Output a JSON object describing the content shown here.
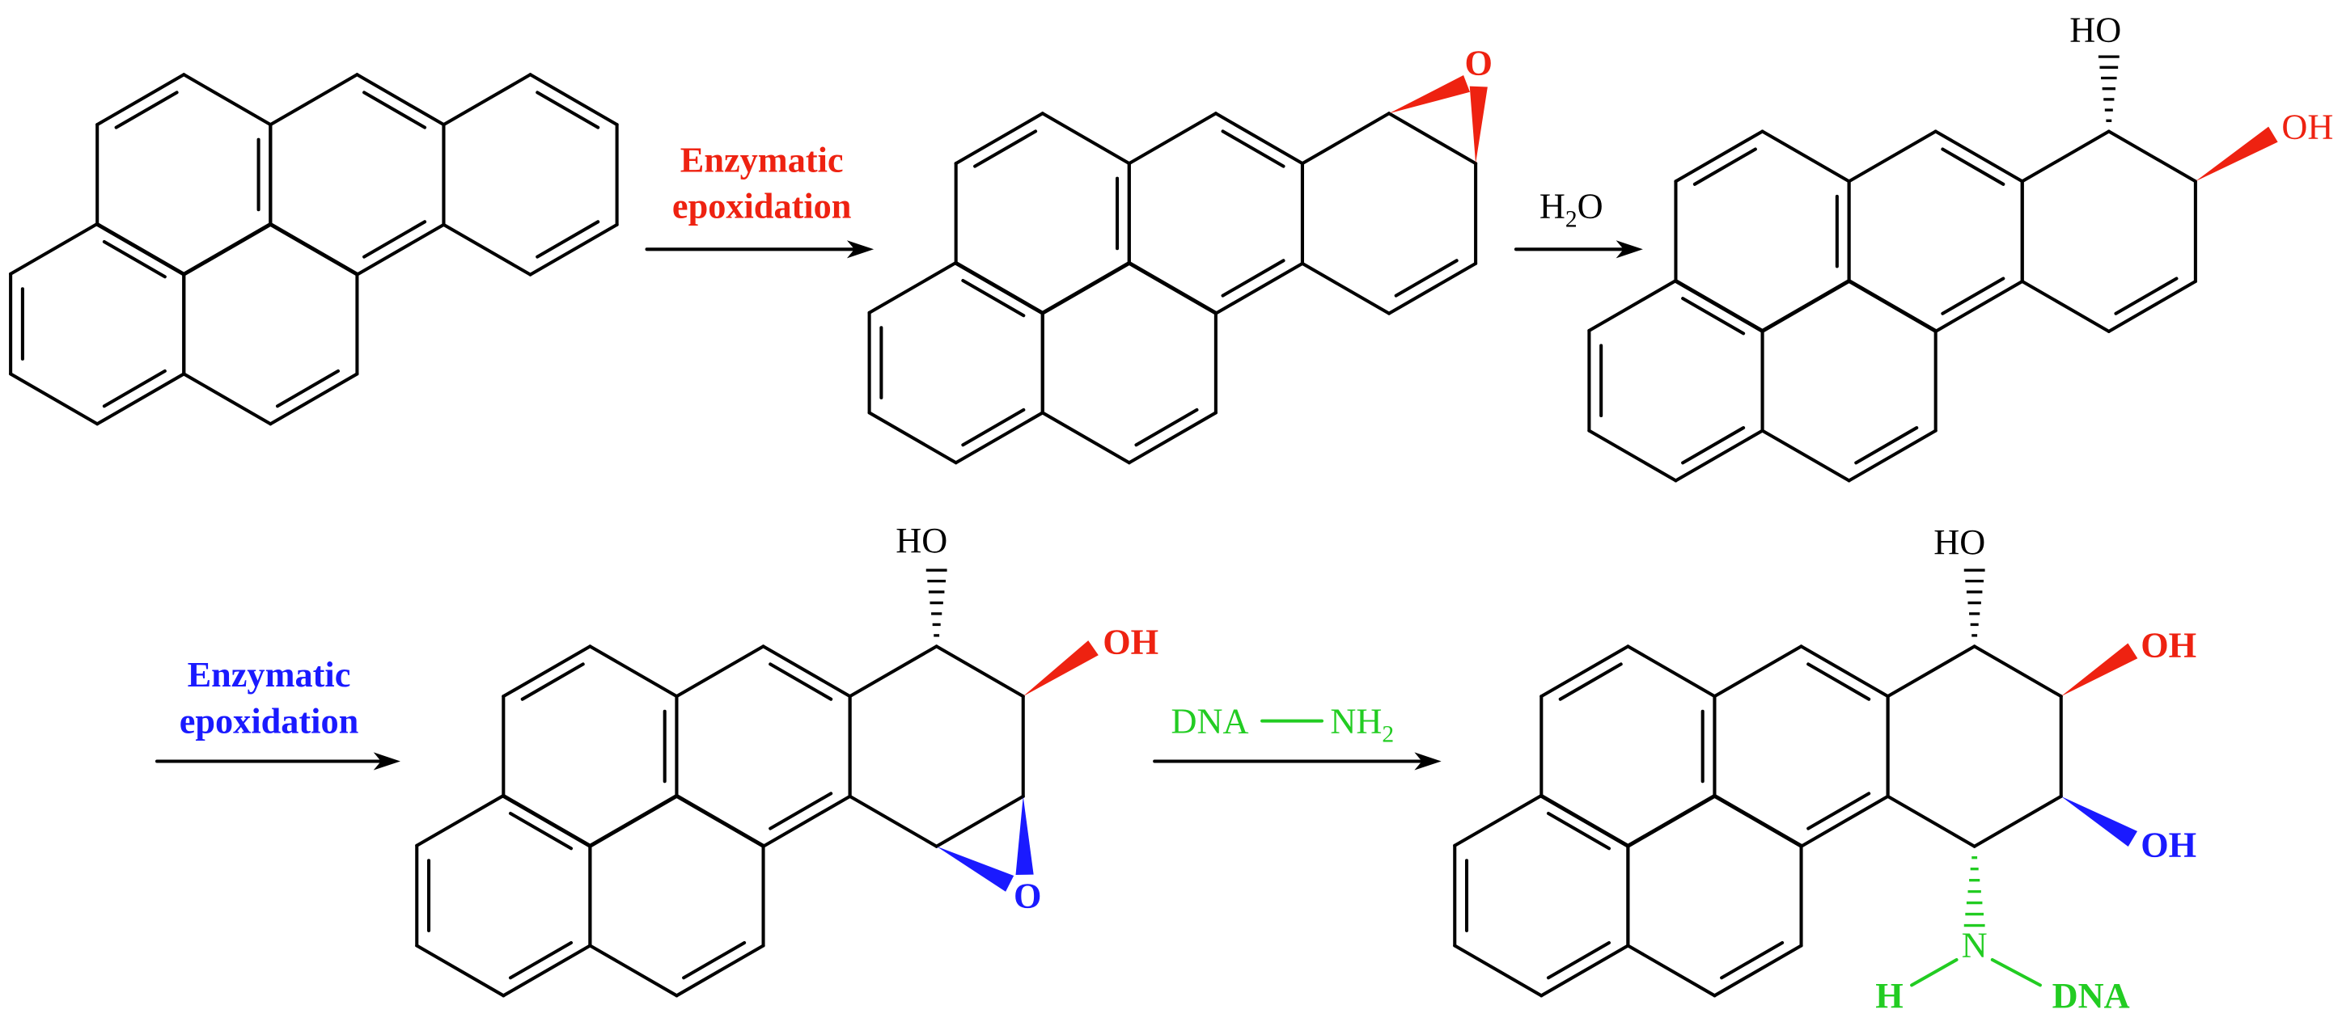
{
  "arrows": [
    {
      "label": [
        "Enzymatic",
        "epoxidation"
      ]
    },
    {
      "label": {
        "main": "H",
        "sub": "2",
        "tail": "O"
      }
    },
    {
      "label": [
        "Enzymatic",
        "epoxidation"
      ]
    },
    {
      "label": {
        "left": "DNA",
        "right": {
          "main": "NH",
          "sub": "2"
        }
      }
    }
  ],
  "molecules": [
    {
      "labels": [
        "O"
      ]
    },
    {
      "labels": [
        "HO",
        "OH"
      ]
    },
    {
      "labels": [
        "HO",
        "OH",
        "O"
      ]
    },
    {
      "labels": [
        "HO",
        "OH",
        "OH",
        "N",
        "H",
        "DNA"
      ]
    }
  ]
}
